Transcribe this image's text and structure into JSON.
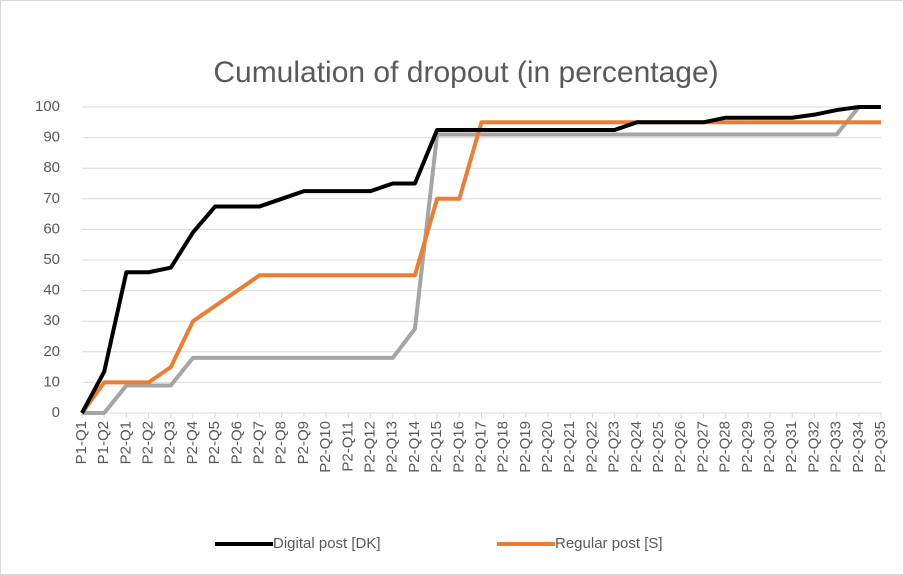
{
  "chart_data": {
    "type": "line",
    "title": "Cumulation of dropout (in percentage)",
    "categories": [
      "P1-Q1",
      "P1-Q2",
      "P2-Q1",
      "P2-Q2",
      "P2-Q3",
      "P2-Q4",
      "P2-Q5",
      "P2-Q6",
      "P2-Q7",
      "P2-Q8",
      "P2-Q9",
      "P2-Q10",
      "P2-Q11",
      "P2-Q12",
      "P2-Q13",
      "P2-Q14",
      "P2-Q15",
      "P2-Q16",
      "P2-Q17",
      "P2-Q18",
      "P2-Q19",
      "P2-Q20",
      "P2-Q21",
      "P2-Q22",
      "P2-Q23",
      "P2-Q24",
      "P2-Q25",
      "P2-Q26",
      "P2-Q27",
      "P2-Q28",
      "P2-Q29",
      "P2-Q30",
      "P2-Q31",
      "P2-Q32",
      "P2-Q33",
      "P2-Q34",
      "P2-Q35"
    ],
    "series": [
      {
        "name": "Digital post [DK]",
        "color": "#000000",
        "values": [
          0,
          13.5,
          46,
          46,
          47.5,
          59,
          67.5,
          67.5,
          67.5,
          70,
          72.5,
          72.5,
          72.5,
          72.5,
          75,
          75,
          92.5,
          92.5,
          92.5,
          92.5,
          92.5,
          92.5,
          92.5,
          92.5,
          92.5,
          95,
          95,
          95,
          95,
          96.5,
          96.5,
          96.5,
          96.5,
          97.5,
          99,
          100,
          100
        ]
      },
      {
        "name": "Regular post [S]",
        "color": "#ed7d31",
        "values": [
          0,
          10,
          10,
          10,
          15,
          30,
          35,
          40,
          45,
          45,
          45,
          45,
          45,
          45,
          45,
          45,
          70,
          70,
          95,
          95,
          95,
          95,
          95,
          95,
          95,
          95,
          95,
          95,
          95,
          95,
          95,
          95,
          95,
          95,
          95,
          95,
          95
        ]
      },
      {
        "color": "#a5a5a5",
        "values": [
          0,
          0,
          9,
          9,
          9,
          18,
          18,
          18,
          18,
          18,
          18,
          18,
          18,
          18,
          18,
          27.5,
          91,
          91,
          91,
          91,
          91,
          91,
          91,
          91,
          91,
          91,
          91,
          91,
          91,
          91,
          91,
          91,
          91,
          91,
          91,
          100,
          100
        ]
      }
    ],
    "ylim": [
      0,
      100
    ],
    "yticks": [
      0,
      10,
      20,
      30,
      40,
      50,
      60,
      70,
      80,
      90,
      100
    ],
    "grid": true,
    "legend": "bottom"
  }
}
